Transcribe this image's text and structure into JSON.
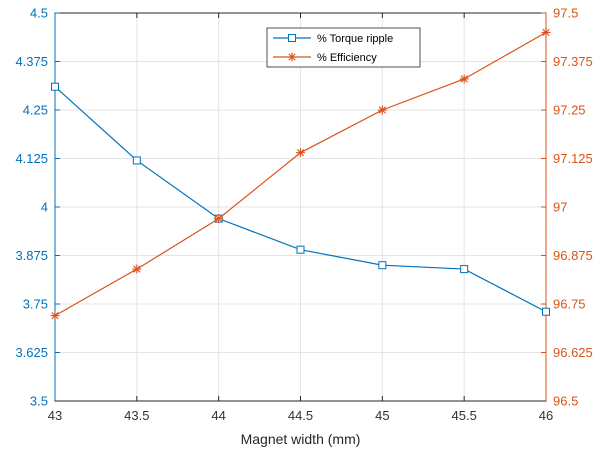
{
  "colors": {
    "left_axis": "#0072bd",
    "right_axis": "#d95319",
    "bottom_axis": "#262626",
    "grid": "#e4e4e4"
  },
  "chart_data": {
    "type": "line",
    "xlabel": "Magnet width (mm)",
    "x": [
      43,
      43.5,
      44,
      44.5,
      45,
      45.5,
      46
    ],
    "xlim": [
      43,
      46
    ],
    "xticks": [
      "43",
      "43.5",
      "44",
      "44.5",
      "45",
      "45.5",
      "46"
    ],
    "grid": true,
    "legend_position": "top-center",
    "left_axis": {
      "ylim": [
        3.5,
        4.5
      ],
      "ticks": [
        "3.5",
        "3.625",
        "3.75",
        "3.875",
        "4",
        "4.125",
        "4.25",
        "4.375",
        "4.5"
      ]
    },
    "right_axis": {
      "ylim": [
        96.5,
        97.5
      ],
      "ticks": [
        "96.5",
        "96.625",
        "96.75",
        "96.875",
        "97",
        "97.125",
        "97.25",
        "97.375",
        "97.5"
      ]
    },
    "series": [
      {
        "name": "% Torque ripple",
        "axis": "left",
        "marker": "square",
        "color": "#0072bd",
        "values": [
          4.31,
          4.12,
          3.97,
          3.89,
          3.85,
          3.84,
          3.73
        ]
      },
      {
        "name": "% Efficiency",
        "axis": "right",
        "marker": "asterisk",
        "color": "#d95319",
        "values": [
          96.72,
          96.84,
          96.97,
          97.14,
          97.25,
          97.33,
          97.45
        ]
      }
    ]
  }
}
